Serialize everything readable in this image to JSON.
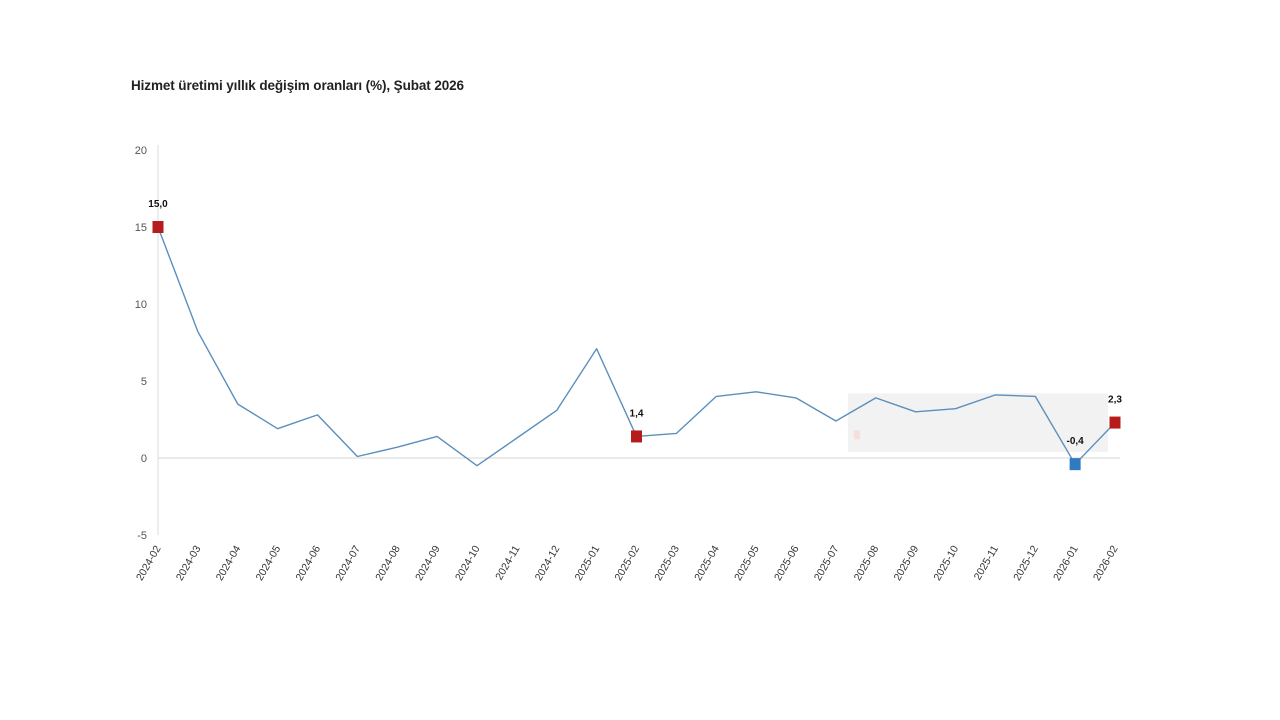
{
  "chart_data": {
    "type": "line",
    "title": "Hizmet üretimi yıllık değişim oranları (%), Şubat 2026",
    "xlabel": "",
    "ylabel": "",
    "ylim": [
      -5,
      20
    ],
    "yticks": [
      "20",
      "15",
      "10",
      "5",
      "0",
      "-5"
    ],
    "ytick_values": [
      20,
      15,
      10,
      5,
      0,
      -5
    ],
    "grid": false,
    "legend": "none",
    "categories": [
      "2024-02",
      "2024-03",
      "2024-04",
      "2024-05",
      "2024-06",
      "2024-07",
      "2024-08",
      "2024-09",
      "2024-10",
      "2024-11",
      "2024-12",
      "2025-01",
      "2025-02",
      "2025-03",
      "2025-04",
      "2025-05",
      "2025-06",
      "2025-07",
      "2025-08",
      "2025-09",
      "2025-10",
      "2025-11",
      "2025-12",
      "2026-01",
      "2026-02"
    ],
    "values": [
      15.0,
      8.2,
      3.5,
      1.9,
      2.8,
      0.1,
      0.7,
      1.4,
      -0.5,
      1.3,
      3.1,
      7.1,
      1.4,
      1.6,
      4.0,
      4.3,
      3.9,
      2.4,
      3.9,
      3.0,
      3.2,
      4.1,
      4.0,
      -0.4,
      2.3
    ],
    "data_labels": [
      {
        "index": 0,
        "text": "15,0"
      },
      {
        "index": 12,
        "text": "1,4"
      },
      {
        "index": 23,
        "text": "-0,4"
      },
      {
        "index": 24,
        "text": "2,3"
      }
    ],
    "line_color": "#5b8fbd",
    "marker_color_high": "#b71c1c",
    "marker_color_low": "#2e7bbf"
  }
}
